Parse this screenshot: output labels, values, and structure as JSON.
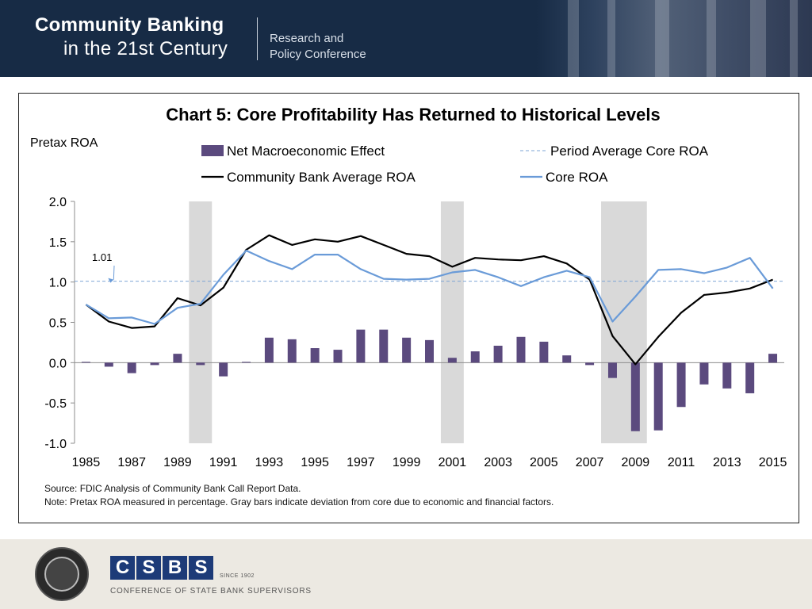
{
  "header": {
    "title_line1": "Community Banking",
    "title_line2": "in the 21st Century",
    "subtitle_line1": "Research and",
    "subtitle_line2": "Policy Conference"
  },
  "footer": {
    "logo_letters": [
      "C",
      "S",
      "B",
      "S"
    ],
    "since": "SINCE 1902",
    "org_name": "CONFERENCE OF STATE BANK SUPERVISORS",
    "seal_icon": "federal-reserve-seal-icon"
  },
  "chart_data": {
    "type": "bar",
    "title": "Chart 5: Core Profitability Has Returned to Historical Levels",
    "ylabel": "Pretax ROA",
    "ylim": [
      -1.0,
      2.0
    ],
    "yticks": [
      "2.0",
      "1.5",
      "1.0",
      "0.5",
      "0.0",
      "-0.5",
      "-1.0"
    ],
    "xtick_labels": [
      "1985",
      "1987",
      "1989",
      "1991",
      "1993",
      "1995",
      "1997",
      "1999",
      "2001",
      "2003",
      "2005",
      "2007",
      "2009",
      "2011",
      "2013",
      "2015"
    ],
    "x": [
      1985,
      1986,
      1987,
      1988,
      1989,
      1990,
      1991,
      1992,
      1993,
      1994,
      1995,
      1996,
      1997,
      1998,
      1999,
      2000,
      2001,
      2002,
      2003,
      2004,
      2005,
      2006,
      2007,
      2008,
      2009,
      2010,
      2011,
      2012,
      2013,
      2014,
      2015
    ],
    "series": [
      {
        "name": "Net Macroeconomic Effect",
        "kind": "bar",
        "color": "#5b4a7e",
        "values": [
          0.01,
          -0.05,
          -0.13,
          -0.03,
          0.11,
          -0.03,
          -0.17,
          0.01,
          0.31,
          0.29,
          0.18,
          0.16,
          0.41,
          0.41,
          0.31,
          0.28,
          0.06,
          0.14,
          0.21,
          0.32,
          0.26,
          0.09,
          -0.03,
          -0.19,
          -0.85,
          -0.84,
          -0.55,
          -0.27,
          -0.32,
          -0.38,
          0.11
        ]
      },
      {
        "name": "Community Bank Average ROA",
        "kind": "line",
        "color": "#000000",
        "values": [
          0.72,
          0.51,
          0.43,
          0.45,
          0.8,
          0.71,
          0.93,
          1.4,
          1.58,
          1.46,
          1.53,
          1.5,
          1.57,
          1.46,
          1.35,
          1.32,
          1.19,
          1.3,
          1.28,
          1.27,
          1.32,
          1.23,
          1.03,
          0.33,
          -0.02,
          0.32,
          0.62,
          0.84,
          0.87,
          0.92,
          1.03
        ]
      },
      {
        "name": "Period Average Core ROA",
        "kind": "dashed-line",
        "color": "#7ea6d6",
        "value": 1.01
      },
      {
        "name": "Core ROA",
        "kind": "line",
        "color": "#6a9bd8",
        "values": [
          0.72,
          0.55,
          0.56,
          0.48,
          0.68,
          0.73,
          1.09,
          1.39,
          1.26,
          1.16,
          1.34,
          1.34,
          1.16,
          1.04,
          1.03,
          1.04,
          1.12,
          1.15,
          1.06,
          0.95,
          1.06,
          1.14,
          1.06,
          0.51,
          0.82,
          1.15,
          1.16,
          1.11,
          1.18,
          1.3,
          0.92
        ]
      }
    ],
    "recession_shading": [
      [
        1989.5,
        1990.5
      ],
      [
        2000.5,
        2001.5
      ],
      [
        2007.5,
        2009.5
      ]
    ],
    "annotation": {
      "text": "1.01",
      "value": 1.01
    },
    "source": "Source: FDIC Analysis of Community Bank Call Report Data.",
    "note": "Note: Pretax ROA measured in percentage. Gray bars indicate deviation from core due to economic and financial factors."
  }
}
